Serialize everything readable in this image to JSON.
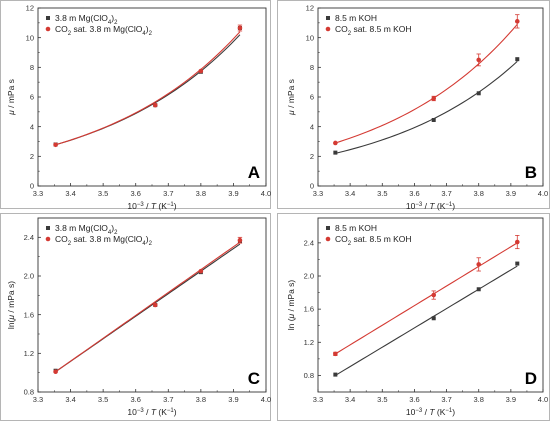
{
  "chart_data": [
    {
      "panel": "A",
      "type": "line",
      "xlabel_pre": "10",
      "xlabel_sup": "−3",
      "xlabel_mid": " / ",
      "xlabel_var": "T",
      "xlabel_unit": " (K",
      "xlabel_unit_sup": "−1",
      "xlabel_close": ")",
      "ylabel_var": "μ",
      "ylabel_rest": " / mPa s",
      "xlim": [
        3.3,
        4.0
      ],
      "ylim": [
        0,
        12
      ],
      "xticks": [
        3.3,
        3.4,
        3.5,
        3.6,
        3.7,
        3.8,
        3.9,
        4.0
      ],
      "yticks": [
        0,
        2,
        4,
        6,
        8,
        10,
        12
      ],
      "x_decimals": 1,
      "y_decimals": 0,
      "legend_position": "top-left",
      "series": [
        {
          "name_main": "3.8 m Mg(ClO",
          "name_sub": "4",
          "name_rest": ")",
          "name_sub2": "2",
          "marker": "square",
          "color": "#3a3a3a",
          "x": [
            3.354,
            3.66,
            3.8,
            3.92
          ],
          "y": [
            2.8,
            5.45,
            7.7,
            10.65
          ],
          "err": [
            0,
            0,
            0,
            0
          ],
          "fit_type": "exp",
          "fit_x": [
            3.354,
            3.92
          ],
          "fit_y": [
            2.78,
            10.2
          ]
        },
        {
          "name_main": "CO",
          "name_sub": "2",
          "name_rest": " sat. 3.8 m Mg(ClO",
          "name_sub2": "4",
          "name_rest2": ")",
          "name_sub3": "2",
          "marker": "circle",
          "color": "#d43a33",
          "x": [
            3.354,
            3.66,
            3.8,
            3.92
          ],
          "y": [
            2.78,
            5.45,
            7.75,
            10.65
          ],
          "err": [
            0,
            0,
            0,
            0.2
          ],
          "fit_type": "exp",
          "fit_x": [
            3.354,
            3.92
          ],
          "fit_y": [
            2.78,
            10.4
          ]
        }
      ]
    },
    {
      "panel": "B",
      "type": "line",
      "xlabel_pre": "10",
      "xlabel_sup": "−3",
      "xlabel_mid": " / ",
      "xlabel_var": "T",
      "xlabel_unit": " (K",
      "xlabel_unit_sup": "−1",
      "xlabel_close": ")",
      "ylabel_var": "μ",
      "ylabel_rest": " / mPa s",
      "xlim": [
        3.3,
        4.0
      ],
      "ylim": [
        0,
        12
      ],
      "xticks": [
        3.3,
        3.4,
        3.5,
        3.6,
        3.7,
        3.8,
        3.9,
        4.0
      ],
      "yticks": [
        0,
        2,
        4,
        6,
        8,
        10,
        12
      ],
      "x_decimals": 1,
      "y_decimals": 0,
      "legend_position": "top-left",
      "series": [
        {
          "name_main": "8.5 m KOH",
          "marker": "square",
          "color": "#3a3a3a",
          "x": [
            3.354,
            3.66,
            3.8,
            3.92
          ],
          "y": [
            2.25,
            4.45,
            6.25,
            8.55
          ],
          "err": [
            0,
            0,
            0,
            0
          ],
          "fit_type": "exp",
          "fit_x": [
            3.354,
            3.92
          ],
          "fit_y": [
            2.2,
            8.4
          ]
        },
        {
          "name_main": "CO",
          "name_sub": "2",
          "name_rest": " sat. 8.5 m KOH",
          "marker": "circle",
          "color": "#d43a33",
          "x": [
            3.354,
            3.66,
            3.8,
            3.92
          ],
          "y": [
            2.9,
            5.9,
            8.5,
            11.1
          ],
          "err": [
            0,
            0.15,
            0.4,
            0.45
          ],
          "fit_type": "exp",
          "fit_x": [
            3.354,
            3.92
          ],
          "fit_y": [
            2.9,
            10.9
          ]
        }
      ]
    },
    {
      "panel": "C",
      "type": "line",
      "xlabel_pre": "10",
      "xlabel_sup": "−3",
      "xlabel_mid": " / ",
      "xlabel_var": "T",
      "xlabel_unit": " (K",
      "xlabel_unit_sup": "−1",
      "xlabel_close": ")",
      "ylabel_pre": "ln(",
      "ylabel_var": "μ",
      "ylabel_rest": " / mPa s)",
      "xlim": [
        3.3,
        4.0
      ],
      "ylim": [
        0.8,
        2.6
      ],
      "xticks": [
        3.3,
        3.4,
        3.5,
        3.6,
        3.7,
        3.8,
        3.9,
        4.0
      ],
      "yticks": [
        0.8,
        1.2,
        1.6,
        2.0,
        2.4
      ],
      "x_decimals": 1,
      "y_decimals": 1,
      "legend_position": "top-left",
      "series": [
        {
          "name_main": "3.8 m Mg(ClO",
          "name_sub": "4",
          "name_rest": ")",
          "name_sub2": "2",
          "marker": "square",
          "color": "#3a3a3a",
          "x": [
            3.354,
            3.66,
            3.8,
            3.92
          ],
          "y": [
            1.02,
            1.7,
            2.04,
            2.36
          ],
          "err": [
            0,
            0,
            0,
            0
          ],
          "fit_type": "linear",
          "fit_x": [
            3.354,
            3.92
          ],
          "fit_y": [
            1.01,
            2.33
          ]
        },
        {
          "name_main": "CO",
          "name_sub": "2",
          "name_rest": " sat. 3.8 m  Mg(ClO",
          "name_sub2": "4",
          "name_rest2": ")",
          "name_sub3": "2",
          "marker": "circle",
          "color": "#d43a33",
          "x": [
            3.354,
            3.66,
            3.8,
            3.92
          ],
          "y": [
            1.01,
            1.7,
            2.05,
            2.37
          ],
          "err": [
            0,
            0,
            0,
            0.03
          ],
          "fit_type": "linear",
          "fit_x": [
            3.354,
            3.92
          ],
          "fit_y": [
            1.01,
            2.35
          ]
        }
      ]
    },
    {
      "panel": "D",
      "type": "line",
      "xlabel_pre": "10",
      "xlabel_sup": "−3",
      "xlabel_mid": " / ",
      "xlabel_var": "T",
      "xlabel_unit": " (K",
      "xlabel_unit_sup": "−1",
      "xlabel_close": ")",
      "ylabel_pre": "ln (",
      "ylabel_var": "μ",
      "ylabel_rest": " / mPa s)",
      "xlim": [
        3.3,
        4.0
      ],
      "ylim": [
        0.6,
        2.7
      ],
      "xticks": [
        3.3,
        3.4,
        3.5,
        3.6,
        3.7,
        3.8,
        3.9,
        4.0
      ],
      "yticks": [
        0.8,
        1.2,
        1.6,
        2.0,
        2.4
      ],
      "x_decimals": 1,
      "y_decimals": 1,
      "legend_position": "top-left",
      "series": [
        {
          "name_main": "8.5 m KOH",
          "marker": "square",
          "color": "#3a3a3a",
          "x": [
            3.354,
            3.66,
            3.8,
            3.92
          ],
          "y": [
            0.81,
            1.49,
            1.84,
            2.15
          ],
          "err": [
            0,
            0,
            0,
            0
          ],
          "fit_type": "linear",
          "fit_x": [
            3.354,
            3.92
          ],
          "fit_y": [
            0.8,
            2.12
          ]
        },
        {
          "name_main": "CO",
          "name_sub": "2",
          "name_rest": " sat. 8.5 m  KOH",
          "marker": "circle",
          "color": "#d43a33",
          "x": [
            3.354,
            3.66,
            3.8,
            3.92
          ],
          "y": [
            1.06,
            1.77,
            2.14,
            2.41
          ],
          "err": [
            0.02,
            0.05,
            0.08,
            0.08
          ],
          "fit_type": "linear",
          "fit_x": [
            3.354,
            3.92
          ],
          "fit_y": [
            1.06,
            2.4
          ]
        }
      ]
    }
  ]
}
